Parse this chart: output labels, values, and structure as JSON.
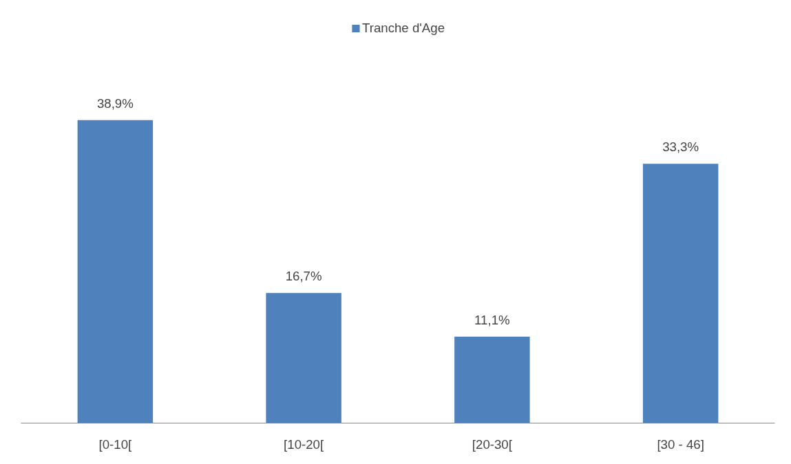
{
  "chart_data": {
    "type": "bar",
    "categories": [
      "[0-10[",
      "[10-20[",
      "[20-30[",
      "[30 - 46]"
    ],
    "series": [
      {
        "name": "Tranche d'Age",
        "color": "#4f81bd",
        "values": [
          38.9,
          16.7,
          11.1,
          33.3
        ],
        "value_labels": [
          "38,9%",
          "16,7%",
          "11,1%",
          "33,3%"
        ]
      }
    ],
    "legend": "top",
    "grid": false
  }
}
